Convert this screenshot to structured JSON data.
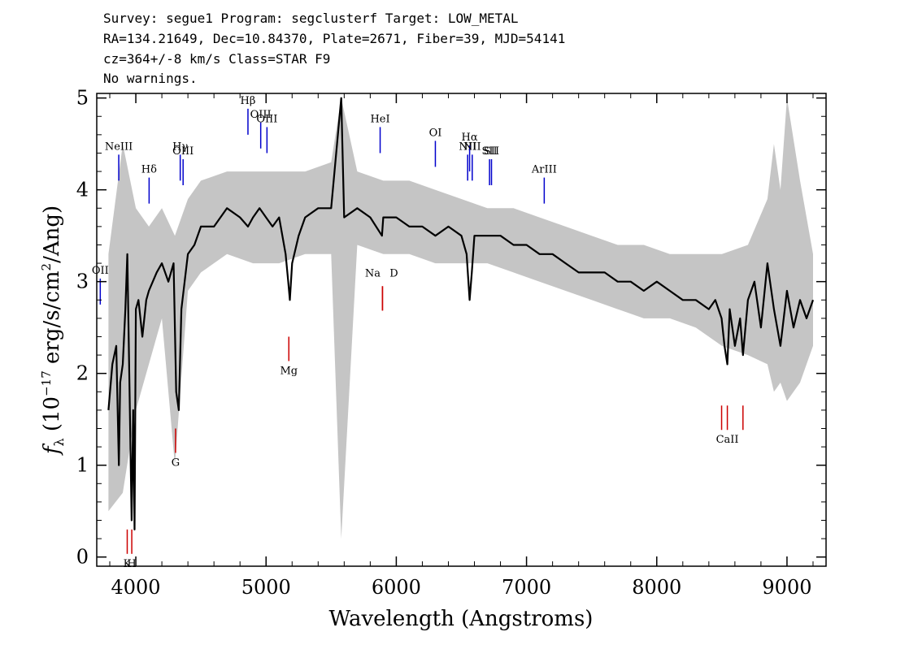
{
  "header": {
    "line1": "Survey: segue1 Program: segclusterf Target: LOW_METAL",
    "line2": "RA=134.21649, Dec=10.84370, Plate=2671, Fiber=39, MJD=54141",
    "line3": "cz=364+/-8 km/s Class=STAR F9",
    "line4": "No warnings."
  },
  "chart_data": {
    "type": "line",
    "xlabel": "Wavelength (Angstroms)",
    "ylabel": "f_λ (10^-17 erg/s/cm^2/Ang)",
    "xlim": [
      3700,
      9300
    ],
    "ylim": [
      -0.1,
      5.05
    ],
    "xticks": [
      "4000",
      "5000",
      "6000",
      "7000",
      "8000",
      "9000"
    ],
    "yticks": [
      "0",
      "1",
      "2",
      "3",
      "4",
      "5"
    ],
    "grid": false,
    "series": [
      {
        "role": "flux",
        "color": "#000000",
        "x": [
          3790,
          3820,
          3850,
          3870,
          3880,
          3900,
          3920,
          3935,
          3950,
          3968,
          3980,
          3990,
          4000,
          4020,
          4050,
          4080,
          4100,
          4130,
          4160,
          4200,
          4250,
          4290,
          4300,
          4310,
          4330,
          4350,
          4400,
          4450,
          4500,
          4550,
          4600,
          4700,
          4800,
          4861,
          4900,
          4950,
          5000,
          5050,
          5100,
          5150,
          5170,
          5183,
          5200,
          5250,
          5300,
          5400,
          5500,
          5577,
          5600,
          5700,
          5800,
          5890,
          5900,
          6000,
          6100,
          6200,
          6300,
          6400,
          6500,
          6540,
          6563,
          6580,
          6600,
          6700,
          6800,
          6900,
          7000,
          7100,
          7200,
          7300,
          7400,
          7500,
          7600,
          7700,
          7800,
          7900,
          8000,
          8100,
          8200,
          8300,
          8400,
          8450,
          8498,
          8520,
          8542,
          8560,
          8600,
          8640,
          8662,
          8700,
          8750,
          8800,
          8850,
          8900,
          8950,
          9000,
          9050,
          9100,
          9150,
          9200
        ],
        "y": [
          1.6,
          2.1,
          2.3,
          1.0,
          1.9,
          2.1,
          2.7,
          3.3,
          2.0,
          0.4,
          1.6,
          0.3,
          2.7,
          2.8,
          2.4,
          2.8,
          2.9,
          3.0,
          3.1,
          3.2,
          3.0,
          3.2,
          2.5,
          1.8,
          1.6,
          2.7,
          3.3,
          3.4,
          3.6,
          3.6,
          3.6,
          3.8,
          3.7,
          3.6,
          3.7,
          3.8,
          3.7,
          3.6,
          3.7,
          3.3,
          3.0,
          2.8,
          3.2,
          3.5,
          3.7,
          3.8,
          3.8,
          5.0,
          3.7,
          3.8,
          3.7,
          3.5,
          3.7,
          3.7,
          3.6,
          3.6,
          3.5,
          3.6,
          3.5,
          3.3,
          2.8,
          3.1,
          3.5,
          3.5,
          3.5,
          3.4,
          3.4,
          3.3,
          3.3,
          3.2,
          3.1,
          3.1,
          3.1,
          3.0,
          3.0,
          2.9,
          3.0,
          2.9,
          2.8,
          2.8,
          2.7,
          2.8,
          2.6,
          2.3,
          2.1,
          2.7,
          2.3,
          2.6,
          2.2,
          2.8,
          3.0,
          2.5,
          3.2,
          2.7,
          2.3,
          2.9,
          2.5,
          2.8,
          2.6,
          2.8
        ]
      },
      {
        "role": "error-band",
        "color": "#bbbbbb",
        "x": [
          3790,
          3900,
          4000,
          4100,
          4200,
          4300,
          4400,
          4500,
          4700,
          4900,
          5100,
          5300,
          5500,
          5577,
          5700,
          5900,
          6100,
          6300,
          6500,
          6700,
          6900,
          7100,
          7300,
          7500,
          7700,
          7900,
          8100,
          8300,
          8500,
          8700,
          8850,
          8900,
          8950,
          9000,
          9100,
          9200
        ],
        "y_low": [
          0.5,
          0.7,
          1.6,
          2.1,
          2.6,
          1.0,
          2.9,
          3.1,
          3.3,
          3.2,
          3.2,
          3.3,
          3.3,
          0.2,
          3.4,
          3.3,
          3.3,
          3.2,
          3.2,
          3.2,
          3.1,
          3.0,
          2.9,
          2.8,
          2.7,
          2.6,
          2.6,
          2.5,
          2.3,
          2.2,
          2.1,
          1.8,
          1.9,
          1.7,
          1.9,
          2.3
        ],
        "y_high": [
          3.3,
          4.5,
          3.8,
          3.6,
          3.8,
          3.5,
          3.9,
          4.1,
          4.2,
          4.2,
          4.2,
          4.2,
          4.3,
          5.0,
          4.2,
          4.1,
          4.1,
          4.0,
          3.9,
          3.8,
          3.8,
          3.7,
          3.6,
          3.5,
          3.4,
          3.4,
          3.3,
          3.3,
          3.3,
          3.4,
          3.9,
          4.5,
          4.0,
          5.0,
          4.1,
          3.3
        ]
      }
    ],
    "emission_lines": [
      {
        "label": "NeIII",
        "x": 3869,
        "y": 4.1
      },
      {
        "label": "Hδ",
        "x": 4102,
        "y": 3.85
      },
      {
        "label": "Hγ",
        "x": 4341,
        "y": 4.1
      },
      {
        "label": "OIII",
        "x": 4363,
        "y": 4.05
      },
      {
        "label": "Hβ",
        "x": 4861,
        "y": 4.6
      },
      {
        "label": "OIII",
        "x": 4959,
        "y": 4.45
      },
      {
        "label": "OIII",
        "x": 5007,
        "y": 4.4
      },
      {
        "label": "HeI",
        "x": 5876,
        "y": 4.4
      },
      {
        "label": "OI",
        "x": 6300,
        "y": 4.25
      },
      {
        "label": "NII",
        "x": 6548,
        "y": 4.1
      },
      {
        "label": "Hα",
        "x": 6563,
        "y": 4.2
      },
      {
        "label": "NII",
        "x": 6583,
        "y": 4.1
      },
      {
        "label": "SII",
        "x": 6716,
        "y": 4.05
      },
      {
        "label": "SII",
        "x": 6731,
        "y": 4.05
      },
      {
        "label": "ArIII",
        "x": 7136,
        "y": 3.85
      },
      {
        "label": "OII",
        "x": 3727,
        "y": 2.75
      }
    ],
    "absorption_lines": [
      {
        "label": "K",
        "x": 3934,
        "y": 0.3,
        "labeled": true
      },
      {
        "label": "H",
        "x": 3969,
        "y": 0.3,
        "labeled": true
      },
      {
        "label": "G",
        "x": 4305,
        "y": 1.4,
        "labeled": true
      },
      {
        "label": "Mg",
        "x": 5175,
        "y": 2.4,
        "labeled": true
      },
      {
        "label": "Na",
        "x": 5894,
        "y": 2.95,
        "labeled": true
      },
      {
        "label": "D",
        "x": 5894,
        "y": 2.95,
        "labeled": true
      },
      {
        "label": "CaII",
        "x": 8498,
        "y": 1.65,
        "labeled": false
      },
      {
        "label": "CaII",
        "x": 8542,
        "y": 1.65,
        "labeled": true
      },
      {
        "label": "CaII",
        "x": 8662,
        "y": 1.65,
        "labeled": false
      }
    ],
    "colors": {
      "emission": "#0000cc",
      "absorption": "#cc0000",
      "error": "#bbbbbb",
      "flux": "#000000"
    }
  }
}
